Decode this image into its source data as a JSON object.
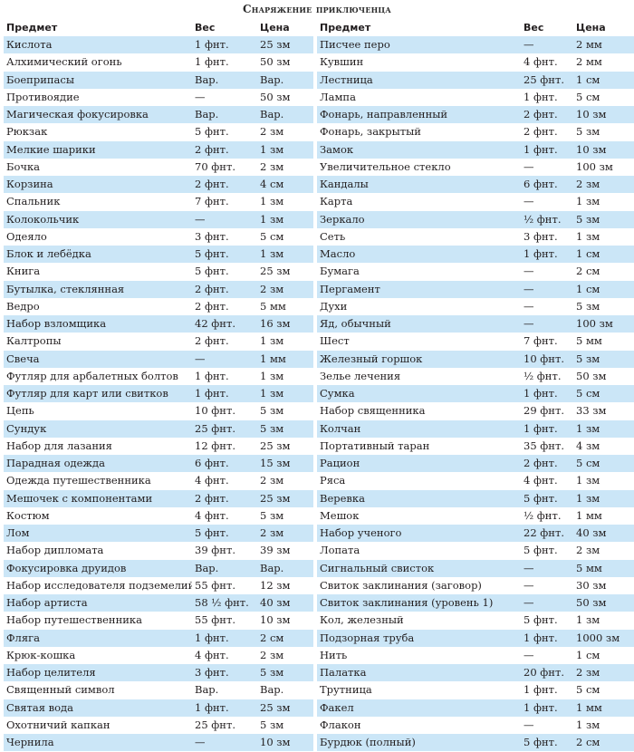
{
  "title": "Снаряжение приключенца",
  "headers": {
    "item": "Предмет",
    "weight": "Вес",
    "price": "Цена"
  },
  "left": [
    [
      "Кислота",
      "1 фнт.",
      "25 зм"
    ],
    [
      "Алхимический огонь",
      "1 фнт.",
      "50 зм"
    ],
    [
      "Боеприпасы",
      "Вар.",
      "Вар."
    ],
    [
      "Противоядие",
      "—",
      "50 зм"
    ],
    [
      "Магическая фокусировка",
      "Вар.",
      "Вар."
    ],
    [
      "Рюкзак",
      "5 фнт.",
      "2 зм"
    ],
    [
      "Мелкие шарики",
      "2 фнт.",
      "1 зм"
    ],
    [
      "Бочка",
      "70 фнт.",
      "2 зм"
    ],
    [
      "Корзина",
      "2 фнт.",
      "4 см"
    ],
    [
      "Спальник",
      "7 фнт.",
      "1 зм"
    ],
    [
      "Колокольчик",
      "—",
      "1 зм"
    ],
    [
      "Одеяло",
      "3 фнт.",
      "5 см"
    ],
    [
      "Блок и лебёдка",
      "5 фнт.",
      "1 зм"
    ],
    [
      "Книга",
      "5 фнт.",
      "25 зм"
    ],
    [
      "Бутылка, стеклянная",
      "2 фнт.",
      "2 зм"
    ],
    [
      "Ведро",
      "2 фнт.",
      "5 мм"
    ],
    [
      "Набор взломщика",
      "42 фнт.",
      "16 зм"
    ],
    [
      "Калтропы",
      "2 фнт.",
      "1 зм"
    ],
    [
      "Свеча",
      "—",
      "1 мм"
    ],
    [
      "Футляр для арбалетных болтов",
      "1 фнт.",
      "1 зм"
    ],
    [
      "Футляр для карт или свитков",
      "1 фнт.",
      "1 зм"
    ],
    [
      "Цепь",
      "10 фнт.",
      "5 зм"
    ],
    [
      "Сундук",
      "25 фнт.",
      "5 зм"
    ],
    [
      "Набор для лазания",
      "12 фнт.",
      "25 зм"
    ],
    [
      "Парадная одежда",
      "6 фнт.",
      "15 зм"
    ],
    [
      "Одежда путешественника",
      "4 фнт.",
      "2 зм"
    ],
    [
      "Мешочек с компонентами",
      "2 фнт.",
      "25 зм"
    ],
    [
      "Костюм",
      "4 фнт.",
      "5 зм"
    ],
    [
      "Лом",
      "5 фнт.",
      "2 зм"
    ],
    [
      "Набор дипломата",
      "39 фнт.",
      "39 зм"
    ],
    [
      "Фокусировка друидов",
      "Вар.",
      "Вар."
    ],
    [
      "Набор исследователя подземелий",
      "55 фнт.",
      "12 зм"
    ],
    [
      "Набор артиста",
      "58 ½ фнт.",
      "40 зм"
    ],
    [
      "Набор путешественника",
      "55 фнт.",
      "10 зм"
    ],
    [
      "Фляга",
      "1 фнт.",
      "2 см"
    ],
    [
      "Крюк-кошка",
      "4 фнт.",
      "2 зм"
    ],
    [
      "Набор целителя",
      "3 фнт.",
      "5 зм"
    ],
    [
      "Священный символ",
      "Вар.",
      "Вар."
    ],
    [
      "Святая вода",
      "1 фнт.",
      "25 зм"
    ],
    [
      "Охотничий капкан",
      "25 фнт.",
      "5 зм"
    ],
    [
      "Чернила",
      "—",
      "10 зм"
    ]
  ],
  "right": [
    [
      "Писчее перо",
      "—",
      "2 мм"
    ],
    [
      "Кувшин",
      "4 фнт.",
      "2 мм"
    ],
    [
      "Лестница",
      "25 фнт.",
      "1 см"
    ],
    [
      "Лампа",
      "1 фнт.",
      "5 см"
    ],
    [
      "Фонарь, направленный",
      "2 фнт.",
      "10 зм"
    ],
    [
      "Фонарь, закрытый",
      "2 фнт.",
      "5 зм"
    ],
    [
      "Замок",
      "1 фнт.",
      "10 зм"
    ],
    [
      "Увеличительное стекло",
      "—",
      "100 зм"
    ],
    [
      "Кандалы",
      "6 фнт.",
      "2 зм"
    ],
    [
      "Карта",
      "—",
      "1 зм"
    ],
    [
      "Зеркало",
      "½ фнт.",
      "5 зм"
    ],
    [
      "Сеть",
      "3 фнт.",
      "1 зм"
    ],
    [
      "Масло",
      "1 фнт.",
      "1 см"
    ],
    [
      "Бумага",
      "—",
      "2 см"
    ],
    [
      "Пергамент",
      "—",
      "1 см"
    ],
    [
      "Духи",
      "—",
      "5 зм"
    ],
    [
      "Яд, обычный",
      "—",
      "100 зм"
    ],
    [
      "Шест",
      "7 фнт.",
      "5 мм"
    ],
    [
      "Железный горшок",
      "10 фнт.",
      "5 зм"
    ],
    [
      "Зелье лечения",
      "½ фнт.",
      "50 зм"
    ],
    [
      "Сумка",
      "1 фнт.",
      "5 см"
    ],
    [
      "Набор священника",
      "29 фнт.",
      "33 зм"
    ],
    [
      "Колчан",
      "1 фнт.",
      "1 зм"
    ],
    [
      "Портативный таран",
      "35 фнт.",
      "4 зм"
    ],
    [
      "Рацион",
      "2 фнт.",
      "5 см"
    ],
    [
      "Ряса",
      "4 фнт.",
      "1 зм"
    ],
    [
      "Веревка",
      "5 фнт.",
      "1 зм"
    ],
    [
      "Мешок",
      "½ фнт.",
      "1 мм"
    ],
    [
      "Набор ученого",
      "22 фнт.",
      "40 зм"
    ],
    [
      "Лопата",
      "5 фнт.",
      "2 зм"
    ],
    [
      "Сигнальный свисток",
      "—",
      "5 мм"
    ],
    [
      "Свиток заклинания (заговор)",
      "—",
      "30 зм"
    ],
    [
      "Свиток заклинания (уровень 1)",
      "—",
      "50 зм"
    ],
    [
      "Кол, железный",
      "5 фнт.",
      "1 зм"
    ],
    [
      "Подзорная труба",
      "1 фнт.",
      "1000 зм"
    ],
    [
      "Нить",
      "—",
      "1 см"
    ],
    [
      "Палатка",
      "20 фнт.",
      "2 зм"
    ],
    [
      "Трутница",
      "1 фнт.",
      "5 см"
    ],
    [
      "Факел",
      "1 фнт.",
      "1 мм"
    ],
    [
      "Флакон",
      "—",
      "1 зм"
    ],
    [
      "Бурдюк (полный)",
      "5 фнт.",
      "2 см"
    ]
  ]
}
